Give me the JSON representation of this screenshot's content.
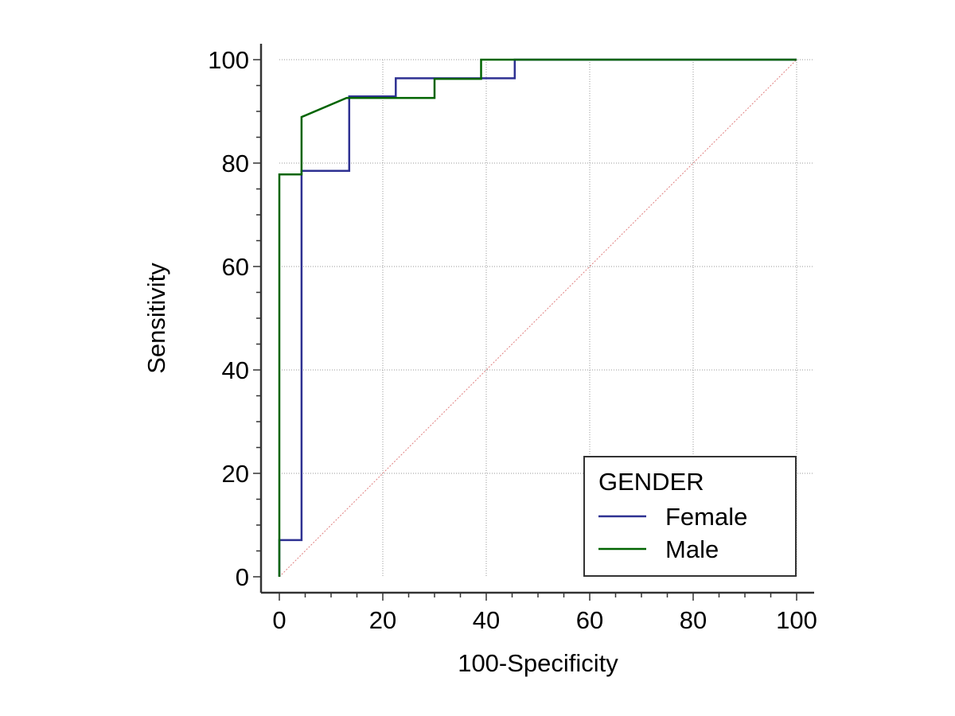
{
  "chart_data": {
    "type": "line",
    "title": "",
    "xlabel": "100-Specificity",
    "ylabel": "Sensitivity",
    "xlim": [
      0,
      100
    ],
    "ylim": [
      0,
      100
    ],
    "x_ticks": [
      "0",
      "20",
      "40",
      "60",
      "80",
      "100"
    ],
    "y_ticks": [
      "0",
      "20",
      "40",
      "60",
      "80",
      "100"
    ],
    "grid": true,
    "legend": {
      "title": "GENDER",
      "position": "bottom-right"
    },
    "series": [
      {
        "name": "Female",
        "color": "#2e3192",
        "x": [
          0,
          0,
          4.3,
          4.3,
          13.5,
          13.5,
          22.5,
          22.5,
          45.5,
          45.5,
          100
        ],
        "y": [
          0,
          7.1,
          7.1,
          78.5,
          78.5,
          92.9,
          92.9,
          96.4,
          96.4,
          100,
          100
        ]
      },
      {
        "name": "Male",
        "color": "#006400",
        "x": [
          0,
          0,
          4.3,
          4.3,
          13.0,
          30.0,
          30.0,
          39.0,
          39.0,
          100
        ],
        "y": [
          0,
          77.8,
          77.8,
          88.9,
          92.6,
          92.6,
          96.3,
          96.3,
          100,
          100
        ]
      },
      {
        "name": "",
        "color": "#e08080",
        "x": [
          0,
          100
        ],
        "y": [
          0,
          100
        ]
      }
    ]
  }
}
